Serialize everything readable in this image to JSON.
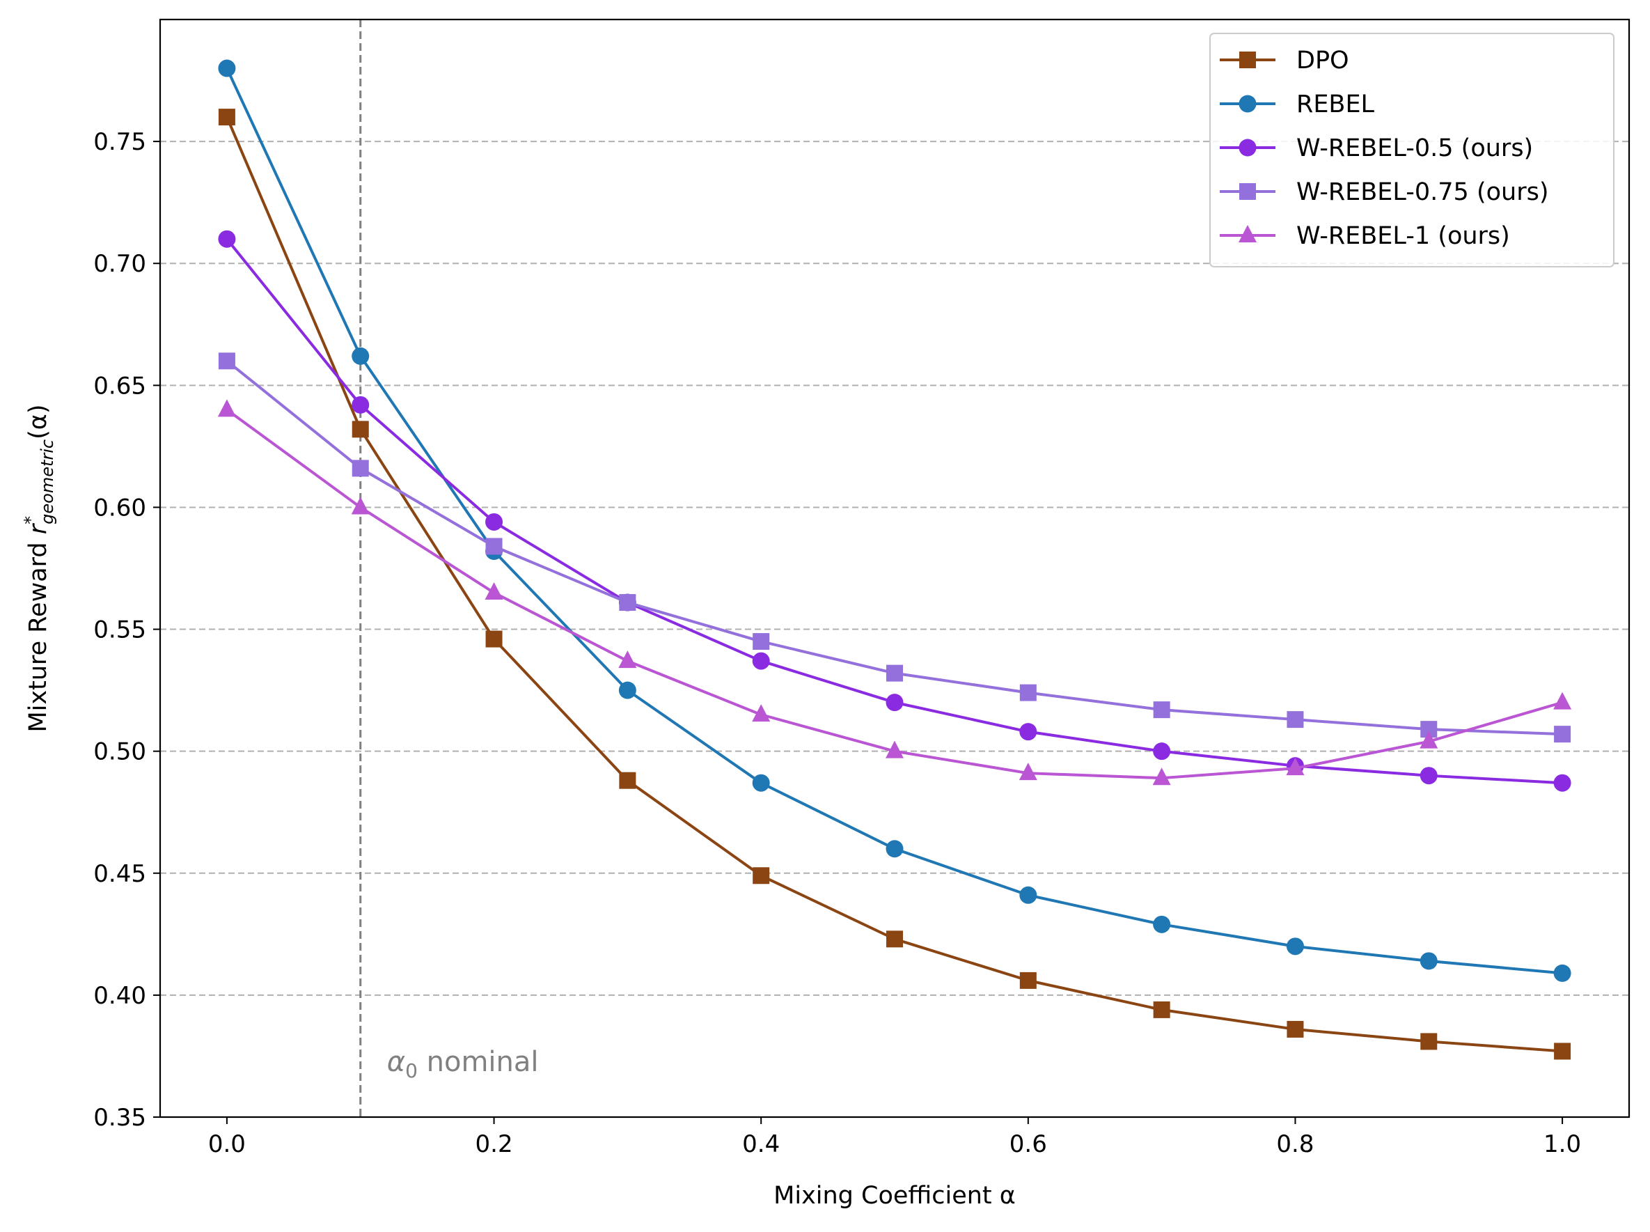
{
  "chart_data": {
    "type": "line",
    "title": "",
    "xlabel": "Mixing Coefficient α",
    "ylabel": "Mixture Reward r*geometric(α)",
    "ylabel_parts": {
      "prefix": "Mixture Reward ",
      "symbol": "r",
      "superscript": "*",
      "subscript": "geometric",
      "suffix": "(α)"
    },
    "xlim": [
      -0.05,
      1.05
    ],
    "ylim": [
      0.35,
      0.8
    ],
    "x": [
      0.0,
      0.1,
      0.2,
      0.3,
      0.4,
      0.5,
      0.6,
      0.7,
      0.8,
      0.9,
      1.0
    ],
    "xticks": [
      0.0,
      0.2,
      0.4,
      0.6,
      0.8,
      1.0
    ],
    "xtick_labels": [
      "0.0",
      "0.2",
      "0.4",
      "0.6",
      "0.8",
      "1.0"
    ],
    "yticks": [
      0.35,
      0.4,
      0.45,
      0.5,
      0.55,
      0.6,
      0.65,
      0.7,
      0.75
    ],
    "ytick_labels": [
      "0.35",
      "0.40",
      "0.45",
      "0.50",
      "0.55",
      "0.60",
      "0.65",
      "0.70",
      "0.75"
    ],
    "grid": "horizontal dashed",
    "legend_position": "top-right",
    "series": [
      {
        "name": "DPO",
        "color": "#8b4513",
        "marker": "square",
        "values": [
          0.76,
          0.632,
          0.546,
          0.488,
          0.449,
          0.423,
          0.406,
          0.394,
          0.386,
          0.381,
          0.377
        ]
      },
      {
        "name": "REBEL",
        "color": "#1f77b4",
        "marker": "circle",
        "values": [
          0.78,
          0.662,
          0.582,
          0.525,
          0.487,
          0.46,
          0.441,
          0.429,
          0.42,
          0.414,
          0.409
        ]
      },
      {
        "name": "W-REBEL-0.5 (ours)",
        "color": "#8a2be2",
        "marker": "circle",
        "values": [
          0.71,
          0.642,
          0.594,
          0.561,
          0.537,
          0.52,
          0.508,
          0.5,
          0.494,
          0.49,
          0.487
        ]
      },
      {
        "name": "W-REBEL-0.75 (ours)",
        "color": "#9370db",
        "marker": "square",
        "values": [
          0.66,
          0.616,
          0.584,
          0.561,
          0.545,
          0.532,
          0.524,
          0.517,
          0.513,
          0.509,
          0.507
        ]
      },
      {
        "name": "W-REBEL-1 (ours)",
        "color": "#ba55d3",
        "marker": "triangle",
        "values": [
          0.64,
          0.6,
          0.565,
          0.537,
          0.515,
          0.5,
          0.491,
          0.489,
          0.493,
          0.504,
          0.52
        ]
      }
    ],
    "reference_line": {
      "x": 0.1,
      "color": "#808080",
      "label_symbol": "α",
      "label_subscript": "0",
      "label_text": " nominal"
    }
  }
}
